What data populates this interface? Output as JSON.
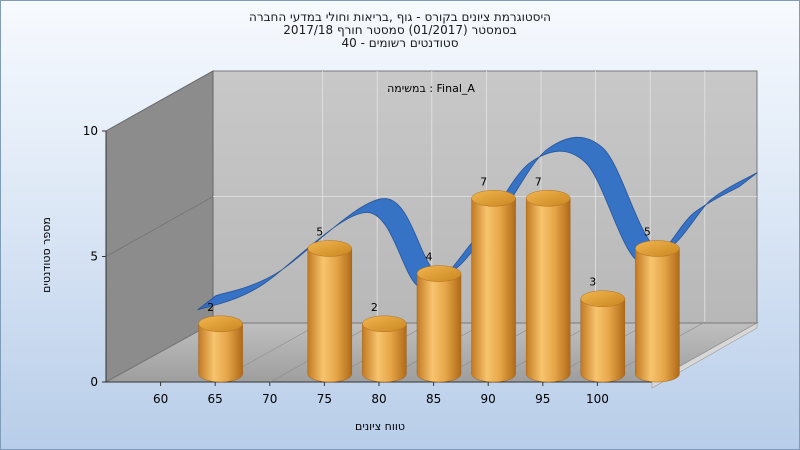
{
  "chart_data": {
    "type": "bar",
    "title_lines": [
      "היסטוגרמת ציונים בקורס - גוף ,בריאות וחולי במדעי החברה",
      "בסמסטר  (01/2017)  סמסטר חורף 2017/18",
      "סטודנטים רשומים - 40"
    ],
    "annotation": "במשימה : Final_A",
    "xlabel": "טווח ציונים",
    "ylabel": "מספר סטודנטים",
    "x_ticks": [
      "60",
      "65",
      "70",
      "75",
      "80",
      "85",
      "90",
      "95",
      "100"
    ],
    "y_ticks": [
      "0",
      "5",
      "10"
    ],
    "ylim": [
      0,
      10
    ],
    "categories": [
      "60",
      "70",
      "75",
      "80",
      "85",
      "90",
      "95",
      "100"
    ],
    "values": [
      2,
      5,
      2,
      4,
      7,
      7,
      3,
      5
    ],
    "bar_color": "#e8a84a",
    "trend_color": "#2f6fc6",
    "grid": true
  }
}
